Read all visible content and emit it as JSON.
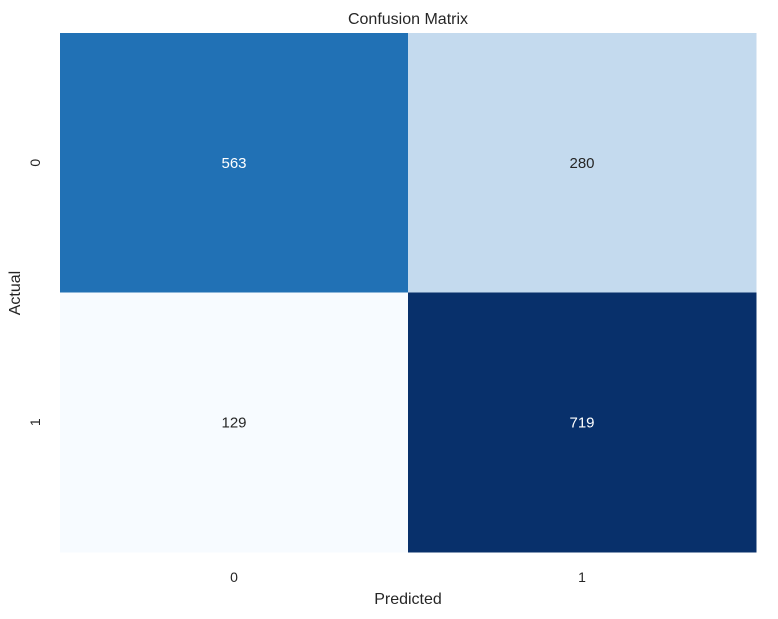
{
  "chart_data": {
    "type": "heatmap",
    "title": "Confusion Matrix",
    "xlabel": "Predicted",
    "ylabel": "Actual",
    "x_categories": [
      "0",
      "1"
    ],
    "y_categories": [
      "0",
      "1"
    ],
    "values": [
      [
        563,
        280
      ],
      [
        129,
        719
      ]
    ],
    "colormap": "Blues",
    "colorbar": false,
    "grid": false,
    "cell_colors": [
      [
        "#2171b5",
        "#c4daee"
      ],
      [
        "#f7fbff",
        "#08306b"
      ]
    ],
    "cell_text_colors": [
      [
        "#ffffff",
        "#262626"
      ],
      [
        "#262626",
        "#ffffff"
      ]
    ]
  }
}
